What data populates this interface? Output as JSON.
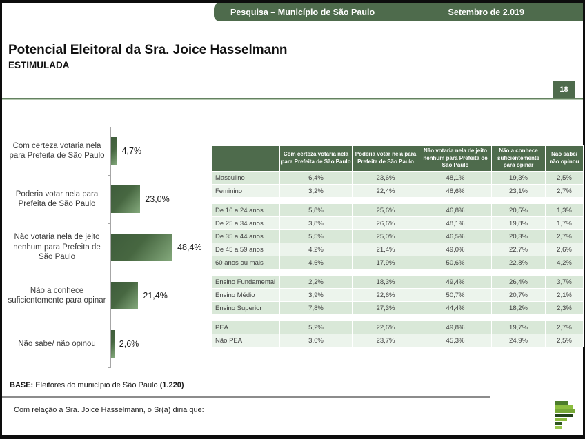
{
  "banner": {
    "title": "Pesquisa – Município de São Paulo",
    "date": "Setembro de 2.019"
  },
  "page": {
    "number": "18"
  },
  "heading": {
    "title": "Potencial Eleitoral da Sra. Joice Hasselmann",
    "subtitle": "ESTIMULADA"
  },
  "chart_data": [
    {
      "type": "bar",
      "orientation": "horizontal",
      "title": "Potencial Eleitoral da Sra. Joice Hasselmann (Estimulada)",
      "categories": [
        "Com certeza votaria nela para Prefeita de São Paulo",
        "Poderia votar nela para Prefeita de São Paulo",
        "Não votaria nela de jeito nenhum para Prefeita de São Paulo",
        "Não a conhece suficientemente para opinar",
        "Não sabe/ não opinou"
      ],
      "values": [
        4.7,
        23.0,
        48.4,
        21.4,
        2.6
      ],
      "value_labels": [
        "4,7%",
        "23,0%",
        "48,4%",
        "21,4%",
        "2,6%"
      ],
      "xlim": [
        0,
        50
      ],
      "grid": false,
      "legend": false,
      "bar_color_dark": "#3e5c3b",
      "bar_color_light": "#85aa7d"
    },
    {
      "type": "table",
      "headers": [
        "",
        "Com certeza votaria nela para Prefeita de São Paulo",
        "Poderia votar nela para Prefeita de São Paulo",
        "Não votaria nela de jeito nenhum para Prefeita de São Paulo",
        "Não a conhece suficientemente para opinar",
        "Não sabe/ não opinou"
      ],
      "groups": [
        {
          "rows": [
            {
              "label": "Masculino",
              "values": [
                "6,4%",
                "23,6%",
                "48,1%",
                "19,3%",
                "2,5%"
              ]
            },
            {
              "label": "Feminino",
              "values": [
                "3,2%",
                "22,4%",
                "48,6%",
                "23,1%",
                "2,7%"
              ]
            }
          ]
        },
        {
          "rows": [
            {
              "label": "De 16 a 24 anos",
              "values": [
                "5,8%",
                "25,6%",
                "46,8%",
                "20,5%",
                "1,3%"
              ]
            },
            {
              "label": "De 25 a 34 anos",
              "values": [
                "3,8%",
                "26,6%",
                "48,1%",
                "19,8%",
                "1,7%"
              ]
            },
            {
              "label": "De 35 a 44 anos",
              "values": [
                "5,5%",
                "25,0%",
                "46,5%",
                "20,3%",
                "2,7%"
              ]
            },
            {
              "label": "De 45 a 59 anos",
              "values": [
                "4,2%",
                "21,4%",
                "49,0%",
                "22,7%",
                "2,6%"
              ]
            },
            {
              "label": "60 anos ou mais",
              "values": [
                "4,6%",
                "17,9%",
                "50,6%",
                "22,8%",
                "4,2%"
              ]
            }
          ]
        },
        {
          "rows": [
            {
              "label": "Ensino Fundamental",
              "values": [
                "2,2%",
                "18,3%",
                "49,4%",
                "26,4%",
                "3,7%"
              ]
            },
            {
              "label": "Ensino Médio",
              "values": [
                "3,9%",
                "22,6%",
                "50,7%",
                "20,7%",
                "2,1%"
              ]
            },
            {
              "label": "Ensino Superior",
              "values": [
                "7,8%",
                "27,3%",
                "44,4%",
                "18,2%",
                "2,3%"
              ]
            }
          ]
        },
        {
          "rows": [
            {
              "label": "PEA",
              "values": [
                "5,2%",
                "22,6%",
                "49,8%",
                "19,7%",
                "2,7%"
              ]
            },
            {
              "label": "Não PEA",
              "values": [
                "3,6%",
                "23,7%",
                "45,3%",
                "24,9%",
                "2,5%"
              ]
            }
          ]
        }
      ]
    }
  ],
  "footer": {
    "base_label": "BASE:",
    "base_text": " Eleitores do município de São Paulo ",
    "base_count": "(1.220)",
    "question": "Com relação a Sra. Joice Hasselmann, o Sr(a) diria que:"
  },
  "colors": {
    "accent_green": "#4e6b4c",
    "row_green": "#d9e8d8",
    "row_green_light": "#ecf4ec",
    "divider_green": "#b3c8af"
  },
  "logo": {
    "name": "p-bars-logo",
    "bars": [
      {
        "width": 20,
        "color": "#4c7c2b"
      },
      {
        "width": 27,
        "color": "#8cbd3f"
      },
      {
        "width": 29,
        "color": "#76a837"
      },
      {
        "width": 27,
        "color": "#23431a"
      },
      {
        "width": 18,
        "color": "#8cbd3f"
      },
      {
        "width": 11,
        "color": "#2f5520"
      },
      {
        "width": 11,
        "color": "#9ac84d"
      }
    ]
  }
}
